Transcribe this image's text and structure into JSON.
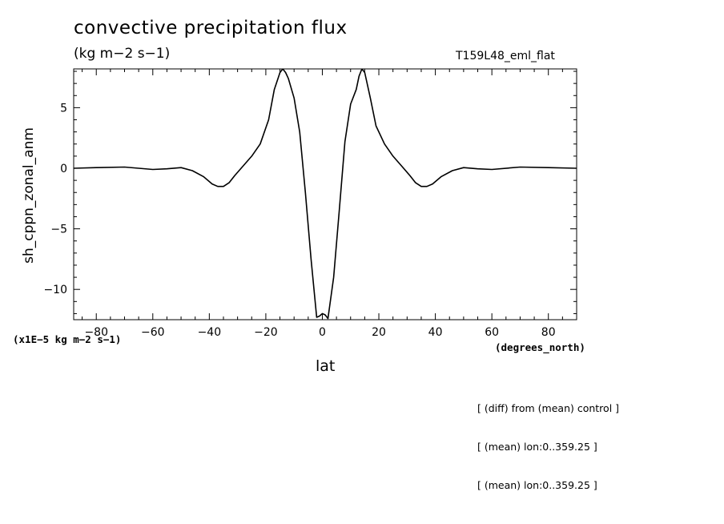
{
  "chart_data": {
    "type": "line",
    "title": "convective precipitation flux",
    "units_label": "(kg m−2 s−1)",
    "run_label": "T159L48_eml_flat",
    "ylabel": "sh_cppn_zonal_anm",
    "xlabel": "lat",
    "x_units_label": "(degrees_north)",
    "y_scale_label": "(x1E−5 kg m−2 s−1)",
    "xlim": [
      -88,
      90
    ],
    "ylim": [
      -12.5,
      8.2
    ],
    "x_ticks": [
      -80,
      -60,
      -40,
      -20,
      0,
      20,
      40,
      60,
      80
    ],
    "x_tick_labels": [
      "−80",
      "−60",
      "−40",
      "−20",
      "0",
      "20",
      "40",
      "60",
      "80"
    ],
    "y_ticks": [
      -10,
      -5,
      0,
      5
    ],
    "y_tick_labels": [
      "−10",
      "−5",
      "0",
      "5"
    ],
    "grid": false,
    "line_color": "#000000",
    "series": [
      {
        "x": [
          -88,
          -80,
          -70,
          -60,
          -55,
          -50,
          -46,
          -42,
          -39,
          -37,
          -35,
          -33,
          -31,
          -28,
          -25,
          -22,
          -19,
          -17,
          -15,
          -14,
          -13,
          -12,
          -10,
          -8,
          -6,
          -4,
          -2,
          -1,
          0,
          1,
          2,
          4,
          6,
          8,
          10,
          12,
          13,
          14,
          15,
          17,
          19,
          22,
          25,
          28,
          31,
          33,
          35,
          37,
          39,
          42,
          46,
          50,
          55,
          60,
          70,
          80,
          90
        ],
        "y": [
          0,
          0.05,
          0.1,
          -0.1,
          -0.05,
          0.05,
          -0.2,
          -0.7,
          -1.3,
          -1.5,
          -1.5,
          -1.2,
          -0.6,
          0.2,
          1.0,
          2.0,
          4.0,
          6.5,
          7.9,
          8.2,
          7.9,
          7.4,
          5.8,
          3.0,
          -2.0,
          -7.5,
          -12.3,
          -12.2,
          -12.0,
          -12.1,
          -12.4,
          -9.0,
          -3.5,
          2.2,
          5.3,
          6.5,
          7.6,
          8.2,
          7.9,
          5.8,
          3.5,
          2.0,
          1.0,
          0.2,
          -0.6,
          -1.2,
          -1.5,
          -1.5,
          -1.3,
          -0.7,
          -0.2,
          0.05,
          -0.05,
          -0.1,
          0.1,
          0.05,
          0
        ]
      }
    ],
    "annotations": [
      "[ (diff) from (mean) control ]",
      "[ (mean) lon:0..359.25 ]",
      "[ (mean) lon:0..359.25 ]"
    ]
  }
}
